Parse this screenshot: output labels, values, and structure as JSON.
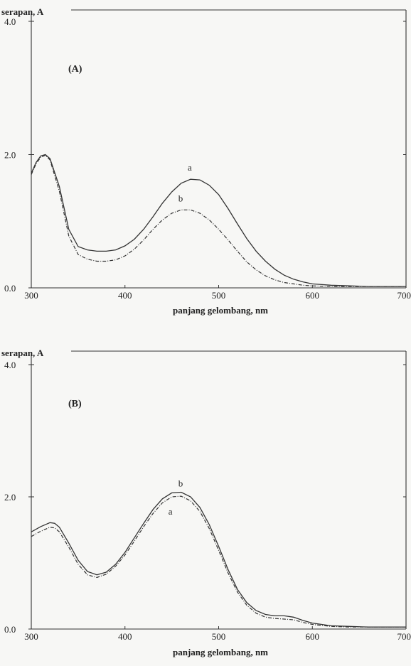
{
  "chart_data": [
    {
      "type": "line",
      "panel_label": "(A)",
      "ylabel": "serapan, A",
      "xlabel": "panjang gelombang, nm",
      "xlim": [
        300,
        700
      ],
      "ylim": [
        0,
        4.0
      ],
      "x_ticks": [
        "300",
        "400",
        "500",
        "600",
        "700"
      ],
      "y_ticks": [
        "0.0",
        "2.0",
        "4.0"
      ],
      "series": [
        {
          "name": "a",
          "style": "solid",
          "x": [
            300,
            305,
            310,
            315,
            320,
            330,
            340,
            350,
            360,
            370,
            380,
            390,
            400,
            410,
            420,
            430,
            440,
            450,
            460,
            470,
            480,
            490,
            500,
            510,
            520,
            530,
            540,
            550,
            560,
            570,
            580,
            590,
            600,
            620,
            640,
            660,
            680,
            700
          ],
          "y": [
            1.72,
            1.88,
            1.98,
            2.0,
            1.94,
            1.52,
            0.88,
            0.62,
            0.57,
            0.55,
            0.55,
            0.57,
            0.63,
            0.73,
            0.88,
            1.07,
            1.27,
            1.44,
            1.57,
            1.63,
            1.62,
            1.54,
            1.4,
            1.19,
            0.96,
            0.74,
            0.55,
            0.4,
            0.28,
            0.19,
            0.13,
            0.09,
            0.06,
            0.04,
            0.03,
            0.02,
            0.02,
            0.02
          ]
        },
        {
          "name": "b",
          "style": "dashed",
          "x": [
            300,
            305,
            310,
            315,
            320,
            330,
            340,
            350,
            360,
            370,
            380,
            390,
            400,
            410,
            420,
            430,
            440,
            450,
            460,
            470,
            480,
            490,
            500,
            510,
            520,
            530,
            540,
            550,
            560,
            570,
            580,
            590,
            600,
            620,
            640,
            660,
            680,
            700
          ],
          "y": [
            1.7,
            1.86,
            1.96,
            1.99,
            1.92,
            1.45,
            0.78,
            0.5,
            0.43,
            0.4,
            0.4,
            0.42,
            0.48,
            0.58,
            0.72,
            0.88,
            1.02,
            1.12,
            1.17,
            1.17,
            1.12,
            1.02,
            0.88,
            0.72,
            0.55,
            0.39,
            0.27,
            0.18,
            0.12,
            0.08,
            0.06,
            0.04,
            0.03,
            0.02,
            0.02,
            0.02,
            0.02,
            0.02
          ]
        }
      ],
      "series_label_positions_note": ""
    },
    {
      "type": "line",
      "panel_label": "(B)",
      "ylabel": "serapan, A",
      "xlabel": "panjang gelombang, nm",
      "xlim": [
        300,
        700
      ],
      "ylim": [
        0,
        4.0
      ],
      "x_ticks": [
        "300",
        "400",
        "500",
        "600",
        "700"
      ],
      "y_ticks": [
        "0.0",
        "2.0",
        "4.0"
      ],
      "series": [
        {
          "name": "b",
          "style": "solid",
          "x": [
            300,
            310,
            320,
            325,
            330,
            340,
            350,
            360,
            370,
            380,
            390,
            400,
            410,
            420,
            430,
            440,
            450,
            460,
            470,
            480,
            490,
            500,
            510,
            520,
            530,
            540,
            550,
            560,
            570,
            580,
            590,
            600,
            620,
            640,
            660,
            680,
            700
          ],
          "y": [
            1.47,
            1.55,
            1.61,
            1.6,
            1.54,
            1.3,
            1.04,
            0.87,
            0.82,
            0.86,
            0.98,
            1.16,
            1.38,
            1.6,
            1.81,
            1.97,
            2.06,
            2.07,
            2.0,
            1.84,
            1.58,
            1.25,
            0.9,
            0.6,
            0.4,
            0.28,
            0.22,
            0.2,
            0.2,
            0.18,
            0.13,
            0.09,
            0.05,
            0.04,
            0.03,
            0.03,
            0.03
          ]
        },
        {
          "name": "a",
          "style": "dashed",
          "x": [
            300,
            310,
            320,
            325,
            330,
            340,
            350,
            360,
            370,
            380,
            390,
            400,
            410,
            420,
            430,
            440,
            450,
            460,
            470,
            480,
            490,
            500,
            510,
            520,
            530,
            540,
            550,
            560,
            570,
            580,
            590,
            600,
            620,
            640,
            660,
            680,
            700
          ],
          "y": [
            1.4,
            1.48,
            1.54,
            1.53,
            1.47,
            1.24,
            0.98,
            0.82,
            0.78,
            0.83,
            0.95,
            1.12,
            1.33,
            1.55,
            1.75,
            1.91,
            2.0,
            2.01,
            1.94,
            1.78,
            1.52,
            1.19,
            0.85,
            0.56,
            0.36,
            0.24,
            0.18,
            0.16,
            0.15,
            0.14,
            0.1,
            0.07,
            0.04,
            0.03,
            0.03,
            0.03,
            0.03
          ]
        }
      ]
    }
  ]
}
